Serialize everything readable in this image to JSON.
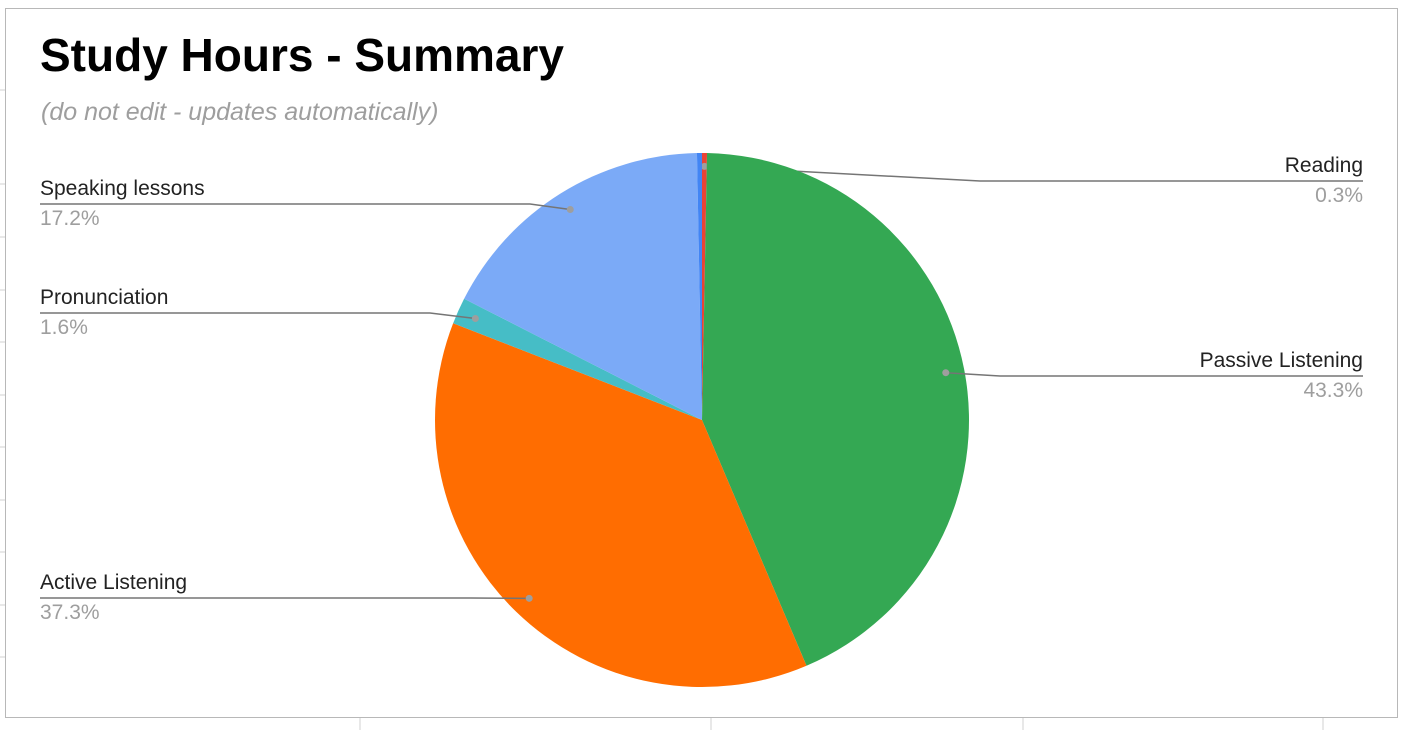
{
  "chart": {
    "title": "Study Hours - Summary",
    "subtitle": "(do not edit - updates automatically)"
  },
  "chart_data": {
    "type": "pie",
    "title": "Study Hours - Summary",
    "subtitle": "(do not edit - updates automatically)",
    "legend": "labels on slices",
    "slices": [
      {
        "label": "Reading",
        "value": 0.3,
        "display": "0.3%",
        "color": "#ea4335"
      },
      {
        "label": "Passive Listening",
        "value": 43.3,
        "display": "43.3%",
        "color": "#34a853"
      },
      {
        "label": "Active Listening",
        "value": 37.3,
        "display": "37.3%",
        "color": "#ff6d01"
      },
      {
        "label": "Pronunciation",
        "value": 1.6,
        "display": "1.6%",
        "color": "#46bdc6"
      },
      {
        "label": "Speaking lessons",
        "value": 17.2,
        "display": "17.2%",
        "color": "#7baaf7"
      },
      {
        "label": "",
        "value": 0.3,
        "display": "",
        "color": "#4285f4"
      }
    ]
  }
}
